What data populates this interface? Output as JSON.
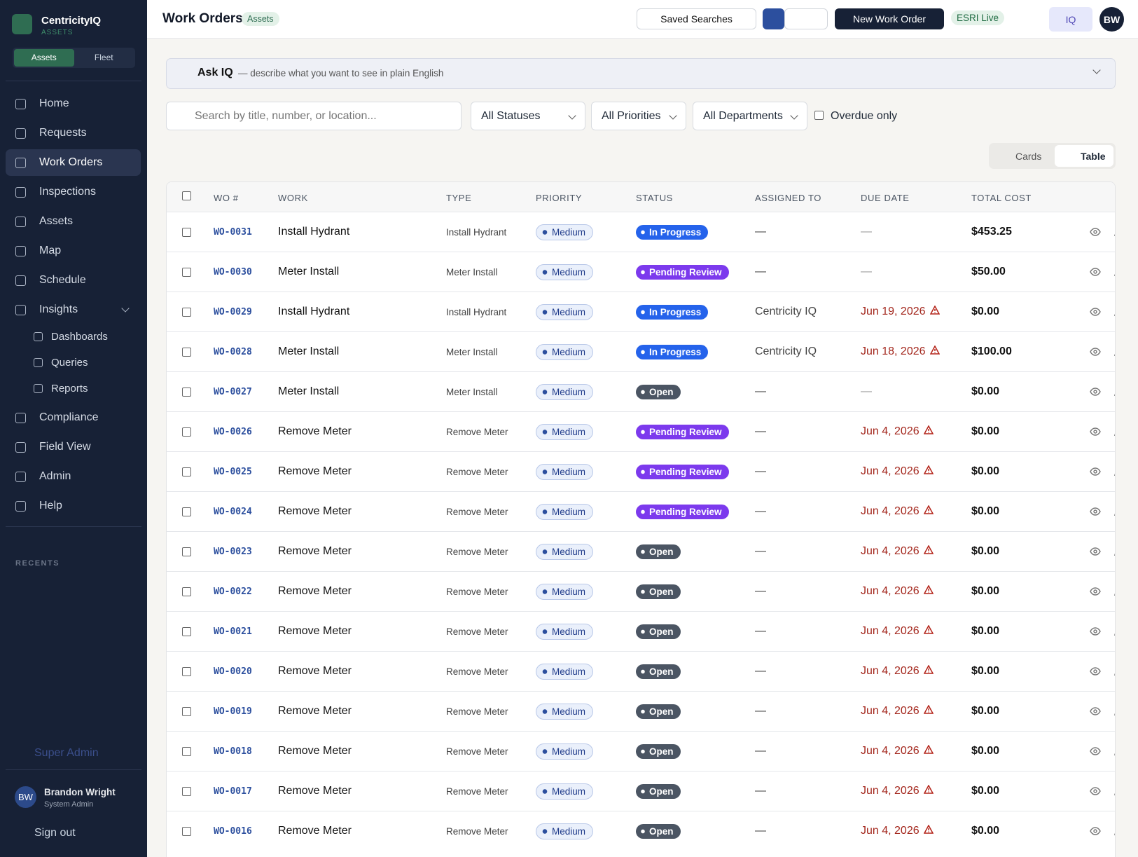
{
  "sidebar": {
    "brand": "CentricityIQ",
    "brand_sub": "ASSETS",
    "modes": [
      "Assets",
      "Fleet"
    ],
    "nav_top": [
      "Home",
      "Requests",
      "Work Orders",
      "Inspections",
      "Assets",
      "Map",
      "Schedule"
    ],
    "active_index": 2,
    "nav_group": "Insights",
    "nav_sub": [
      "Dashboards",
      "Queries",
      "Reports"
    ],
    "nav_bottom": [
      "Compliance",
      "Field View",
      "Admin",
      "Help"
    ],
    "recents": "RECENTS",
    "super_admin": "Super Admin",
    "user": {
      "initials": "BW",
      "name": "Brandon Wright",
      "role": "System Admin"
    },
    "sign_out": "Sign out"
  },
  "header": {
    "title": "Work Orders",
    "badge": "Assets",
    "saved_searches": "Saved Searches",
    "new_button": "New Work Order",
    "esri": "ESRI Live",
    "iq": "IQ",
    "avatar": "BW"
  },
  "ask_iq": {
    "title": "Ask IQ",
    "hint": "— describe what you want to see in plain English"
  },
  "filters": {
    "search_placeholder": "Search by title, number, or location...",
    "status": "All Statuses",
    "priority": "All Priorities",
    "department": "All Departments",
    "overdue": "Overdue only"
  },
  "view_toggle": {
    "cards": "Cards",
    "table": "Table"
  },
  "table": {
    "columns": [
      "WO #",
      "WORK",
      "TYPE",
      "PRIORITY",
      "STATUS",
      "ASSIGNED TO",
      "DUE DATE",
      "TOTAL COST"
    ],
    "rows": [
      {
        "wo": "WO-0031",
        "work": "Install Hydrant",
        "type": "Install Hydrant",
        "priority": "Medium",
        "status": "In Progress",
        "status_color": "#2563eb",
        "assigned": "—",
        "due": "—",
        "overdue": false,
        "cost": "$453.25"
      },
      {
        "wo": "WO-0030",
        "work": "Meter Install",
        "type": "Meter Install",
        "priority": "Medium",
        "status": "Pending Review",
        "status_color": "#7c3aed",
        "assigned": "—",
        "due": "—",
        "overdue": false,
        "cost": "$50.00"
      },
      {
        "wo": "WO-0029",
        "work": "Install Hydrant",
        "type": "Install Hydrant",
        "priority": "Medium",
        "status": "In Progress",
        "status_color": "#2563eb",
        "assigned": "Centricity IQ",
        "due": "Jun 19, 2026",
        "overdue": true,
        "cost": "$0.00"
      },
      {
        "wo": "WO-0028",
        "work": "Meter Install",
        "type": "Meter Install",
        "priority": "Medium",
        "status": "In Progress",
        "status_color": "#2563eb",
        "assigned": "Centricity IQ",
        "due": "Jun 18, 2026",
        "overdue": true,
        "cost": "$100.00"
      },
      {
        "wo": "WO-0027",
        "work": "Meter Install",
        "type": "Meter Install",
        "priority": "Medium",
        "status": "Open",
        "status_color": "#4b5563",
        "assigned": "—",
        "due": "—",
        "overdue": false,
        "cost": "$0.00"
      },
      {
        "wo": "WO-0026",
        "work": "Remove Meter",
        "type": "Remove Meter",
        "priority": "Medium",
        "status": "Pending Review",
        "status_color": "#7c3aed",
        "assigned": "—",
        "due": "Jun 4, 2026",
        "overdue": true,
        "cost": "$0.00"
      },
      {
        "wo": "WO-0025",
        "work": "Remove Meter",
        "type": "Remove Meter",
        "priority": "Medium",
        "status": "Pending Review",
        "status_color": "#7c3aed",
        "assigned": "—",
        "due": "Jun 4, 2026",
        "overdue": true,
        "cost": "$0.00"
      },
      {
        "wo": "WO-0024",
        "work": "Remove Meter",
        "type": "Remove Meter",
        "priority": "Medium",
        "status": "Pending Review",
        "status_color": "#7c3aed",
        "assigned": "—",
        "due": "Jun 4, 2026",
        "overdue": true,
        "cost": "$0.00"
      },
      {
        "wo": "WO-0023",
        "work": "Remove Meter",
        "type": "Remove Meter",
        "priority": "Medium",
        "status": "Open",
        "status_color": "#4b5563",
        "assigned": "—",
        "due": "Jun 4, 2026",
        "overdue": true,
        "cost": "$0.00"
      },
      {
        "wo": "WO-0022",
        "work": "Remove Meter",
        "type": "Remove Meter",
        "priority": "Medium",
        "status": "Open",
        "status_color": "#4b5563",
        "assigned": "—",
        "due": "Jun 4, 2026",
        "overdue": true,
        "cost": "$0.00"
      },
      {
        "wo": "WO-0021",
        "work": "Remove Meter",
        "type": "Remove Meter",
        "priority": "Medium",
        "status": "Open",
        "status_color": "#4b5563",
        "assigned": "—",
        "due": "Jun 4, 2026",
        "overdue": true,
        "cost": "$0.00"
      },
      {
        "wo": "WO-0020",
        "work": "Remove Meter",
        "type": "Remove Meter",
        "priority": "Medium",
        "status": "Open",
        "status_color": "#4b5563",
        "assigned": "—",
        "due": "Jun 4, 2026",
        "overdue": true,
        "cost": "$0.00"
      },
      {
        "wo": "WO-0019",
        "work": "Remove Meter",
        "type": "Remove Meter",
        "priority": "Medium",
        "status": "Open",
        "status_color": "#4b5563",
        "assigned": "—",
        "due": "Jun 4, 2026",
        "overdue": true,
        "cost": "$0.00"
      },
      {
        "wo": "WO-0018",
        "work": "Remove Meter",
        "type": "Remove Meter",
        "priority": "Medium",
        "status": "Open",
        "status_color": "#4b5563",
        "assigned": "—",
        "due": "Jun 4, 2026",
        "overdue": true,
        "cost": "$0.00"
      },
      {
        "wo": "WO-0017",
        "work": "Remove Meter",
        "type": "Remove Meter",
        "priority": "Medium",
        "status": "Open",
        "status_color": "#4b5563",
        "assigned": "—",
        "due": "Jun 4, 2026",
        "overdue": true,
        "cost": "$0.00"
      },
      {
        "wo": "WO-0016",
        "work": "Remove Meter",
        "type": "Remove Meter",
        "priority": "Medium",
        "status": "Open",
        "status_color": "#4b5563",
        "assigned": "—",
        "due": "Jun 4, 2026",
        "overdue": true,
        "cost": "$0.00"
      }
    ]
  }
}
